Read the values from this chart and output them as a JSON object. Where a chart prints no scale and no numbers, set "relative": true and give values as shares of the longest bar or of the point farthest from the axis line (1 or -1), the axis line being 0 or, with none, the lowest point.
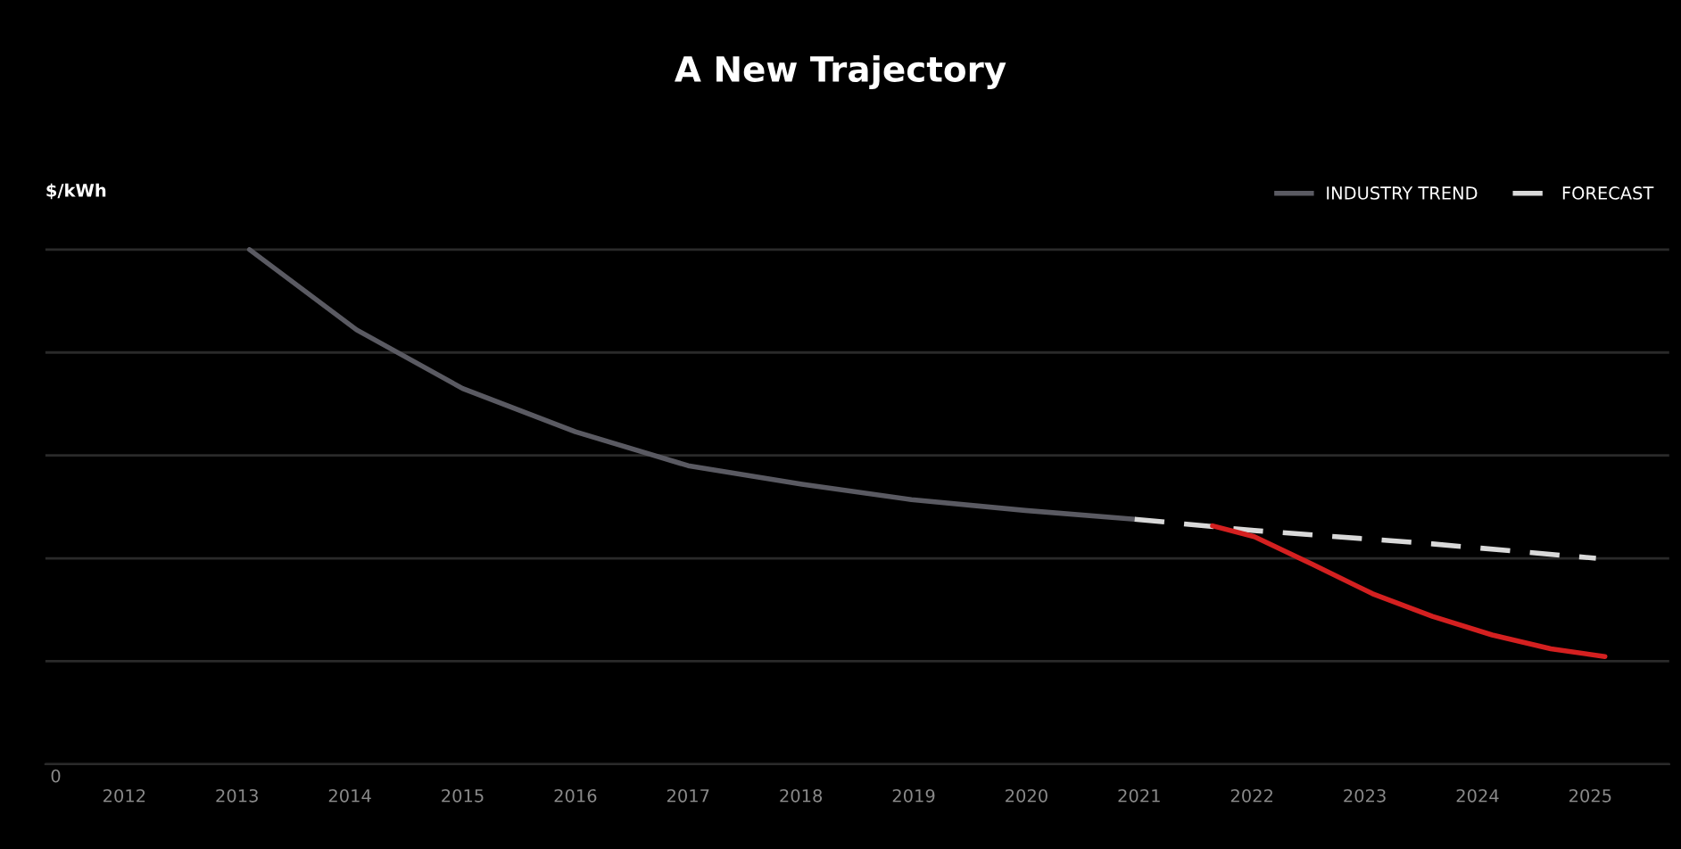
{
  "chart_data": {
    "type": "line",
    "title": "A New Trajectory",
    "ylabel": "$/kWh",
    "relative": true,
    "xlim": [
      2011.3,
      2025.7
    ],
    "xticks": [
      2012,
      2013,
      2014,
      2015,
      2016,
      2017,
      2018,
      2019,
      2020,
      2021,
      2022,
      2023,
      2024,
      2025
    ],
    "annotations": [
      "0"
    ],
    "grid": "y",
    "legend": "top right",
    "series": [
      {
        "name": "INDUSTRY TREND",
        "color": "#5a5a62",
        "line_style": "solid",
        "x": [
          2013.11,
          2014.06,
          2015.0,
          2016.0,
          2017.0,
          2018.01,
          2018.98,
          2019.99,
          2020.96
        ],
        "values": [
          1.0,
          0.844,
          0.73,
          0.646,
          0.58,
          0.544,
          0.514,
          0.493,
          0.476
        ]
      },
      {
        "name": "FORECAST",
        "color": "#d9d9d9",
        "line_style": "dashed",
        "x": [
          2020.96,
          2022.02,
          2023.6,
          2025.05
        ],
        "values": [
          0.476,
          0.454,
          0.428,
          0.4
        ]
      },
      {
        "color": "#d42020",
        "line_style": "solid",
        "x": [
          2021.65,
          2022.02,
          2022.54,
          2023.07,
          2023.6,
          2024.13,
          2024.65,
          2025.13
        ],
        "values": [
          0.463,
          0.442,
          0.388,
          0.331,
          0.287,
          0.251,
          0.224,
          0.209
        ]
      }
    ]
  }
}
